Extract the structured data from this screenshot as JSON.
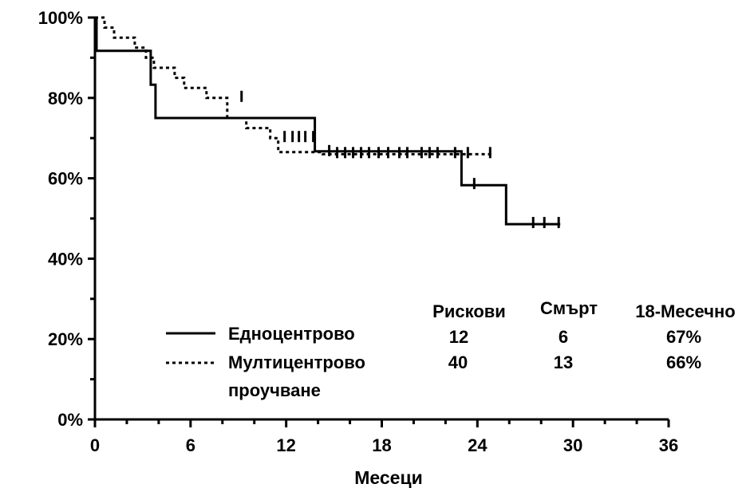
{
  "chart_data": {
    "type": "line",
    "xlabel": "Месеци",
    "ylabel": "",
    "xlim": [
      0,
      36
    ],
    "ylim": [
      0,
      100
    ],
    "xticks": [
      0,
      6,
      12,
      18,
      24,
      30,
      36
    ],
    "yticks": [
      0,
      20,
      40,
      60,
      80,
      100
    ],
    "ytick_labels": [
      "0%",
      "20%",
      "40%",
      "60%",
      "80%",
      "100%"
    ],
    "grid": false,
    "legend_position": "bottom-left",
    "table_headers": [
      "Рискови",
      "Смърт",
      "18-Месечно"
    ],
    "series": [
      {
        "name": "Едноцентрово",
        "style": "solid",
        "color": "#000000",
        "at_risk": "12",
        "deaths": "6",
        "rate_18_month": "67%",
        "x": [
          0,
          0.1,
          0.1,
          3.5,
          3.5,
          3.8,
          3.8,
          13.8,
          13.8,
          23,
          23,
          25.8,
          25.8,
          29.2
        ],
        "y": [
          100,
          100,
          91.7,
          91.7,
          83.3,
          83.3,
          75,
          75,
          66.7,
          66.7,
          58.3,
          58.3,
          48.6,
          48.6
        ],
        "censored": [
          [
            23.8,
            58.3
          ],
          [
            27.5,
            48.6
          ],
          [
            28.2,
            48.6
          ],
          [
            29.1,
            48.6
          ]
        ]
      },
      {
        "name": "Мултицентрово проучване",
        "name_line1": "Мултицентрово",
        "name_line2": "проучване",
        "style": "dotted",
        "color": "#000000",
        "at_risk": "40",
        "deaths": "13",
        "rate_18_month": "66%",
        "x": [
          0,
          0.6,
          0.6,
          1.2,
          1.2,
          2.5,
          2.5,
          3.2,
          3.2,
          3.7,
          3.7,
          5.0,
          5.0,
          5.6,
          5.6,
          7.0,
          7.0,
          8.3,
          8.3,
          9.5,
          9.5,
          11.0,
          11.0,
          11.5,
          11.5,
          14.3,
          14.3,
          25
        ],
        "y": [
          100,
          100,
          97.5,
          97.5,
          95,
          95,
          92.5,
          92.5,
          90,
          90,
          87.5,
          87.5,
          85,
          85,
          82.5,
          82.5,
          80,
          80,
          75,
          75,
          72.5,
          72.5,
          70,
          70,
          66.5,
          66.5,
          66,
          66
        ],
        "censored": [
          [
            9.2,
            80
          ],
          [
            11.9,
            70
          ],
          [
            12.4,
            70
          ],
          [
            12.8,
            70
          ],
          [
            13.2,
            70
          ],
          [
            13.7,
            70
          ],
          [
            14.7,
            66.5
          ],
          [
            15.2,
            66
          ],
          [
            15.7,
            66
          ],
          [
            16.2,
            66
          ],
          [
            16.7,
            66
          ],
          [
            17.2,
            66
          ],
          [
            17.8,
            66
          ],
          [
            18.4,
            66
          ],
          [
            19.1,
            66
          ],
          [
            19.6,
            66
          ],
          [
            20.5,
            66
          ],
          [
            21.0,
            66
          ],
          [
            21.5,
            66
          ],
          [
            22.6,
            66
          ],
          [
            23.4,
            66
          ],
          [
            24.8,
            66
          ]
        ]
      }
    ]
  }
}
